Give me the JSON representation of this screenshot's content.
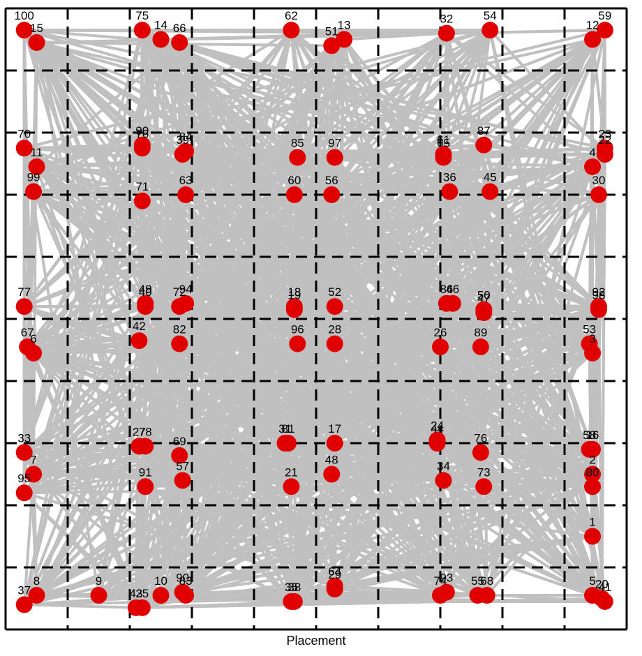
{
  "chart_data": {
    "type": "scatter",
    "title": "",
    "xlabel": "Placement",
    "ylabel": "",
    "xlim": [
      0,
      10
    ],
    "ylim": [
      0,
      10
    ],
    "grid": true,
    "colors": {
      "node": "#e00000",
      "edge": "#c0c0c0",
      "grid": "#000000"
    },
    "points": [
      {
        "id": "100",
        "x": 0.3,
        "y": 9.65
      },
      {
        "id": "15",
        "x": 0.5,
        "y": 9.45
      },
      {
        "id": "75",
        "x": 2.2,
        "y": 9.65
      },
      {
        "id": "14",
        "x": 2.5,
        "y": 9.5
      },
      {
        "id": "66",
        "x": 2.8,
        "y": 9.45
      },
      {
        "id": "62",
        "x": 4.6,
        "y": 9.65
      },
      {
        "id": "51",
        "x": 5.25,
        "y": 9.4
      },
      {
        "id": "13",
        "x": 5.45,
        "y": 9.5
      },
      {
        "id": "32",
        "x": 7.1,
        "y": 9.6
      },
      {
        "id": "54",
        "x": 7.8,
        "y": 9.65
      },
      {
        "id": "12",
        "x": 9.45,
        "y": 9.5
      },
      {
        "id": "59",
        "x": 9.65,
        "y": 9.65
      },
      {
        "id": "70",
        "x": 0.3,
        "y": 7.75
      },
      {
        "id": "11",
        "x": 0.5,
        "y": 7.45
      },
      {
        "id": "90",
        "x": 2.2,
        "y": 7.8
      },
      {
        "id": "76b",
        "x": 2.2,
        "y": 7.75
      },
      {
        "id": "39",
        "x": 2.85,
        "y": 7.65
      },
      {
        "id": "84",
        "x": 2.9,
        "y": 7.7
      },
      {
        "id": "85",
        "x": 4.7,
        "y": 7.6
      },
      {
        "id": "97",
        "x": 5.3,
        "y": 7.6
      },
      {
        "id": "65",
        "x": 7.05,
        "y": 7.6
      },
      {
        "id": "61",
        "x": 7.05,
        "y": 7.65
      },
      {
        "id": "87",
        "x": 7.7,
        "y": 7.8
      },
      {
        "id": "4",
        "x": 9.45,
        "y": 7.45
      },
      {
        "id": "23",
        "x": 9.65,
        "y": 7.75
      },
      {
        "id": "22",
        "x": 9.65,
        "y": 7.65
      },
      {
        "id": "99",
        "x": 0.45,
        "y": 7.05
      },
      {
        "id": "71",
        "x": 2.2,
        "y": 6.9
      },
      {
        "id": "63",
        "x": 2.9,
        "y": 7.0
      },
      {
        "id": "60",
        "x": 4.65,
        "y": 7.0
      },
      {
        "id": "56",
        "x": 5.25,
        "y": 7.0
      },
      {
        "id": "36",
        "x": 7.15,
        "y": 7.05
      },
      {
        "id": "45",
        "x": 7.8,
        "y": 7.05
      },
      {
        "id": "30",
        "x": 9.55,
        "y": 7.0
      },
      {
        "id": "77",
        "x": 0.3,
        "y": 5.2
      },
      {
        "id": "40",
        "x": 2.25,
        "y": 5.2
      },
      {
        "id": "49",
        "x": 2.25,
        "y": 5.25
      },
      {
        "id": "72",
        "x": 2.8,
        "y": 5.2
      },
      {
        "id": "94",
        "x": 2.9,
        "y": 5.25
      },
      {
        "id": "18",
        "x": 4.65,
        "y": 5.2
      },
      {
        "id": "19",
        "x": 4.65,
        "y": 5.15
      },
      {
        "id": "52",
        "x": 5.3,
        "y": 5.2
      },
      {
        "id": "86",
        "x": 7.1,
        "y": 5.25
      },
      {
        "id": "46",
        "x": 7.2,
        "y": 5.25
      },
      {
        "id": "47",
        "x": 7.7,
        "y": 5.1
      },
      {
        "id": "50",
        "x": 7.7,
        "y": 5.15
      },
      {
        "id": "98",
        "x": 9.55,
        "y": 5.15
      },
      {
        "id": "92",
        "x": 9.55,
        "y": 5.2
      },
      {
        "id": "67",
        "x": 0.35,
        "y": 4.55
      },
      {
        "id": "6",
        "x": 0.45,
        "y": 4.45
      },
      {
        "id": "42",
        "x": 2.15,
        "y": 4.65
      },
      {
        "id": "82",
        "x": 2.8,
        "y": 4.6
      },
      {
        "id": "96",
        "x": 4.7,
        "y": 4.6
      },
      {
        "id": "28",
        "x": 5.3,
        "y": 4.6
      },
      {
        "id": "26",
        "x": 7.0,
        "y": 4.55
      },
      {
        "id": "89",
        "x": 7.65,
        "y": 4.55
      },
      {
        "id": "53",
        "x": 9.4,
        "y": 4.6
      },
      {
        "id": "3",
        "x": 9.45,
        "y": 4.45
      },
      {
        "id": "33",
        "x": 0.3,
        "y": 2.85
      },
      {
        "id": "7",
        "x": 0.45,
        "y": 2.5
      },
      {
        "id": "95",
        "x": 0.3,
        "y": 2.2
      },
      {
        "id": "27",
        "x": 2.15,
        "y": 2.95
      },
      {
        "id": "78",
        "x": 2.25,
        "y": 2.95
      },
      {
        "id": "69",
        "x": 2.8,
        "y": 2.8
      },
      {
        "id": "91",
        "x": 2.25,
        "y": 2.3
      },
      {
        "id": "57",
        "x": 2.85,
        "y": 2.4
      },
      {
        "id": "31",
        "x": 4.5,
        "y": 3.0
      },
      {
        "id": "81",
        "x": 4.55,
        "y": 3.0
      },
      {
        "id": "17",
        "x": 5.3,
        "y": 3.0
      },
      {
        "id": "48",
        "x": 5.25,
        "y": 2.5
      },
      {
        "id": "21",
        "x": 4.6,
        "y": 2.3
      },
      {
        "id": "44",
        "x": 6.95,
        "y": 3.0
      },
      {
        "id": "24",
        "x": 6.95,
        "y": 3.05
      },
      {
        "id": "76",
        "x": 7.65,
        "y": 2.85
      },
      {
        "id": "34",
        "x": 7.05,
        "y": 2.4
      },
      {
        "id": "73",
        "x": 7.7,
        "y": 2.3
      },
      {
        "id": "58",
        "x": 9.4,
        "y": 2.9
      },
      {
        "id": "16",
        "x": 9.45,
        "y": 2.9
      },
      {
        "id": "2",
        "x": 9.45,
        "y": 2.5
      },
      {
        "id": "80",
        "x": 9.45,
        "y": 2.3
      },
      {
        "id": "1",
        "x": 9.45,
        "y": 1.5
      },
      {
        "id": "37",
        "x": 0.3,
        "y": 0.4
      },
      {
        "id": "8",
        "x": 0.5,
        "y": 0.55
      },
      {
        "id": "9",
        "x": 1.5,
        "y": 0.55
      },
      {
        "id": "43",
        "x": 2.1,
        "y": 0.35
      },
      {
        "id": "25",
        "x": 2.2,
        "y": 0.35
      },
      {
        "id": "10",
        "x": 2.5,
        "y": 0.55
      },
      {
        "id": "90b",
        "x": 2.85,
        "y": 0.6
      },
      {
        "id": "83",
        "x": 2.9,
        "y": 0.55
      },
      {
        "id": "35",
        "x": 4.6,
        "y": 0.45
      },
      {
        "id": "38",
        "x": 4.65,
        "y": 0.45
      },
      {
        "id": "29",
        "x": 5.3,
        "y": 0.65
      },
      {
        "id": "64",
        "x": 5.3,
        "y": 0.7
      },
      {
        "id": "74",
        "x": 7.0,
        "y": 0.55
      },
      {
        "id": "93",
        "x": 7.1,
        "y": 0.6
      },
      {
        "id": "55",
        "x": 7.6,
        "y": 0.55
      },
      {
        "id": "68",
        "x": 7.75,
        "y": 0.55
      },
      {
        "id": "5",
        "x": 9.45,
        "y": 0.55
      },
      {
        "id": "20",
        "x": 9.6,
        "y": 0.5
      },
      {
        "id": "41",
        "x": 9.65,
        "y": 0.45
      }
    ],
    "labels": [
      "100",
      "15",
      "75",
      "14",
      "66",
      "62",
      "51",
      "13",
      "32",
      "54",
      "12",
      "59",
      "70",
      "11",
      "90",
      "76",
      "39",
      "84",
      "85",
      "97",
      "65",
      "61",
      "87",
      "4",
      "23",
      "22",
      "99",
      "71",
      "63",
      "60",
      "56",
      "36",
      "45",
      "30",
      "77",
      "40",
      "49",
      "72",
      "94",
      "18",
      "19",
      "52",
      "86",
      "46",
      "47",
      "50",
      "98",
      "92",
      "67",
      "6",
      "42",
      "82",
      "96",
      "28",
      "26",
      "89",
      "53",
      "3",
      "33",
      "7",
      "95",
      "27",
      "78",
      "69",
      "91",
      "57",
      "31",
      "81",
      "17",
      "48",
      "21",
      "44",
      "24",
      "76",
      "34",
      "73",
      "58",
      "16",
      "2",
      "80",
      "1",
      "37",
      "8",
      "9",
      "43",
      "25",
      "10",
      "90",
      "83",
      "35",
      "38",
      "29",
      "64",
      "74",
      "93",
      "55",
      "68",
      "5",
      "20",
      "41"
    ],
    "edges_description_count": 100
  }
}
